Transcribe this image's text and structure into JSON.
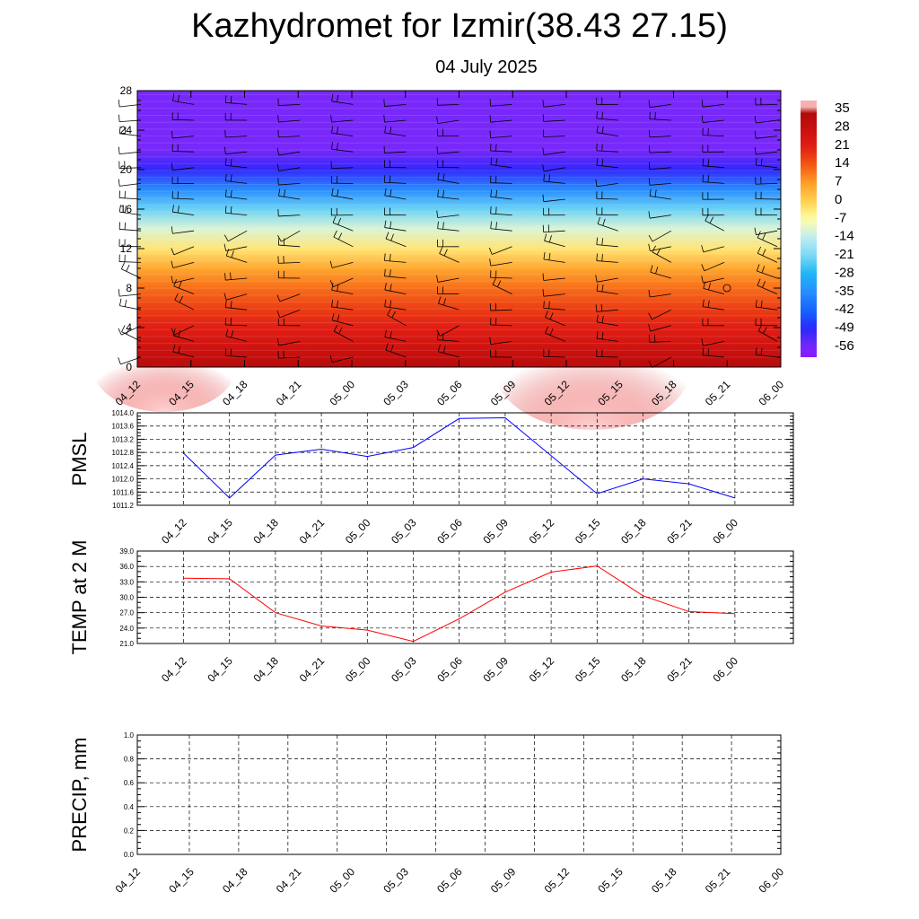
{
  "title": "Kazhydromet for Izmir(38.43 27.15)",
  "subtitle": "04 July 2025",
  "colors": {
    "pmsl_line": "#0000ff",
    "temp_line": "#ff0000",
    "precip_line": "#006400",
    "grid": "#000000"
  },
  "chart_data": [
    {
      "id": "cross_section",
      "type": "heatmap",
      "title": "",
      "ylabel": "",
      "ylim": [
        0,
        28
      ],
      "yticks": [
        "0",
        "4",
        "8",
        "12",
        "16",
        "20",
        "24",
        "28"
      ],
      "xticks": [
        "04_12",
        "04_15",
        "04_18",
        "04_21",
        "05_00",
        "05_03",
        "05_06",
        "05_09",
        "05_12",
        "05_15",
        "05_18",
        "05_21",
        "06_00"
      ],
      "colorbar_labels": [
        "35",
        "28",
        "21",
        "14",
        "7",
        "0",
        "-7",
        "-14",
        "-21",
        "-28",
        "-35",
        "-42",
        "-49",
        "-56"
      ],
      "overlay": "wind barbs",
      "levels": [
        0,
        2,
        4,
        6,
        8,
        10,
        12,
        14,
        16,
        18,
        20,
        22,
        24,
        26,
        28
      ],
      "temperature_profile": [
        33,
        26,
        21,
        17,
        12,
        6,
        -3,
        -11,
        -22,
        -35,
        -50,
        -56,
        -56,
        -56,
        -56
      ]
    },
    {
      "id": "pmsl",
      "type": "line",
      "ylabel": "PMSL",
      "ylim": [
        1011.2,
        1014.0
      ],
      "yticks": [
        "1011.2",
        "1011.6",
        "1012.0",
        "1012.4",
        "1012.8",
        "1013.2",
        "1013.6",
        "1014.0"
      ],
      "categories": [
        "04_12",
        "04_15",
        "04_18",
        "04_21",
        "05_00",
        "05_03",
        "05_06",
        "05_09",
        "05_12",
        "05_15",
        "05_18",
        "05_21",
        "06_00"
      ],
      "series": [
        {
          "values": [
            1012.78,
            1011.42,
            1012.72,
            1012.9,
            1012.68,
            1012.95,
            1013.83,
            1013.85,
            1012.7,
            1011.55,
            1012.0,
            1011.85,
            1011.42
          ]
        }
      ]
    },
    {
      "id": "temp",
      "type": "line",
      "ylabel": "TEMP at 2 M",
      "ylim": [
        21.0,
        39.0
      ],
      "yticks": [
        "21.0",
        "24.0",
        "27.0",
        "30.0",
        "33.0",
        "36.0",
        "39.0"
      ],
      "categories": [
        "04_12",
        "04_15",
        "04_18",
        "04_21",
        "05_00",
        "05_03",
        "05_06",
        "05_09",
        "05_12",
        "05_15",
        "05_18",
        "05_21",
        "06_00"
      ],
      "series": [
        {
          "values": [
            33.7,
            33.6,
            27.0,
            24.4,
            23.6,
            21.4,
            25.8,
            31.0,
            34.9,
            36.1,
            30.3,
            27.2,
            26.8
          ]
        }
      ]
    },
    {
      "id": "precip",
      "type": "line",
      "ylabel": "PRECIP, mm",
      "ylim": [
        0.0,
        1.0
      ],
      "yticks": [
        "0.0",
        "0.2",
        "0.4",
        "0.6",
        "0.8",
        "1.0"
      ],
      "categories": [
        "04_12",
        "04_15",
        "04_18",
        "04_21",
        "05_00",
        "05_03",
        "05_06",
        "05_09",
        "05_12",
        "05_15",
        "05_18",
        "05_21",
        "06_00"
      ],
      "series": [
        {
          "values": [
            0,
            0,
            0,
            0,
            0,
            0,
            0,
            0,
            0,
            0,
            0,
            0,
            0
          ]
        }
      ]
    }
  ]
}
